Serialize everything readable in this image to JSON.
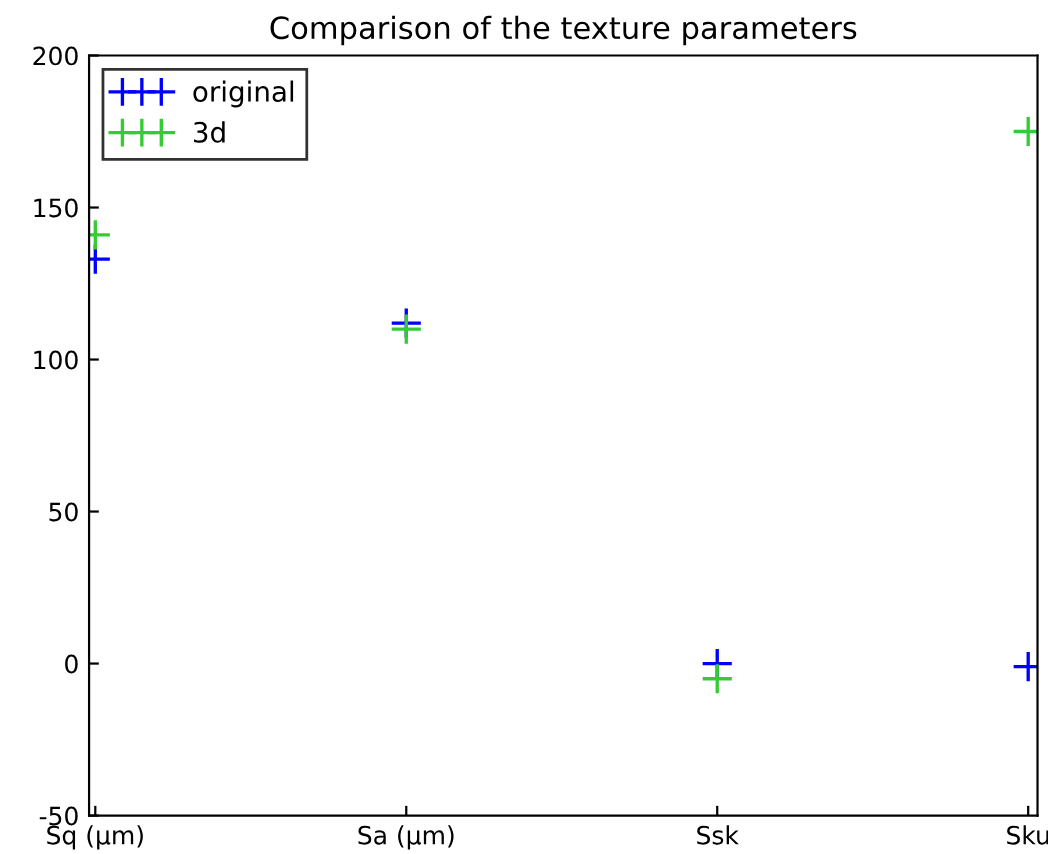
{
  "chart_data": {
    "type": "scatter",
    "title": "Comparison of the texture parameters",
    "categories": [
      "Sq (μm)",
      "Sa (μm)",
      "Ssk",
      "Sku"
    ],
    "series": [
      {
        "name": "original",
        "color": "#0000ff",
        "values": [
          133,
          112,
          0,
          -1
        ]
      },
      {
        "name": "3d",
        "color": "#33cc33",
        "values": [
          141,
          110,
          -5,
          175
        ]
      }
    ],
    "ylim": [
      -50,
      200
    ],
    "yticks": [
      -50,
      0,
      50,
      100,
      150,
      200
    ],
    "marker": "cross",
    "legend": "top left",
    "grid": false
  }
}
